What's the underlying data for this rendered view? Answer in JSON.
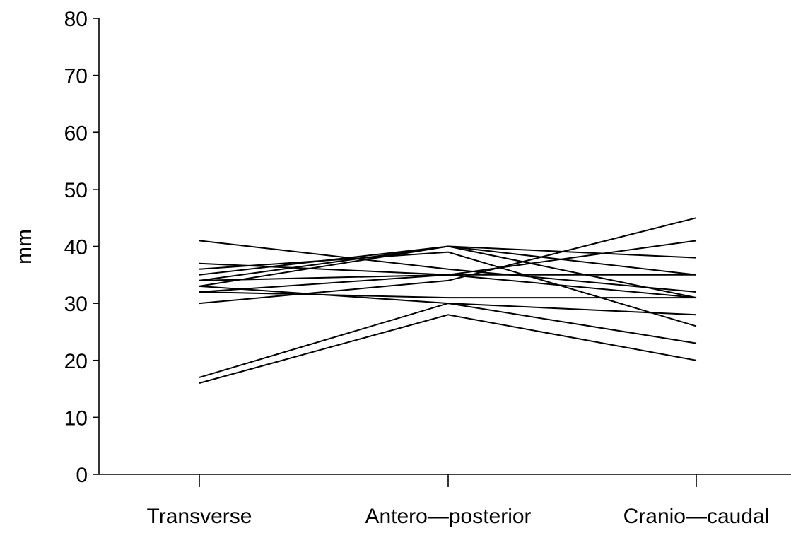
{
  "chart_data": {
    "type": "line",
    "title": "",
    "xlabel": "",
    "ylabel": "mm",
    "ylim": [
      0,
      80
    ],
    "yticks": [
      0,
      10,
      20,
      30,
      40,
      50,
      60,
      70,
      80
    ],
    "categories": [
      "Transverse",
      "Antero—posterior",
      "Cranio—caudal"
    ],
    "grid": false,
    "legend": "none",
    "line_color": "#000000",
    "series": [
      {
        "values": [
          41,
          36,
          32
        ]
      },
      {
        "values": [
          37,
          35,
          31
        ]
      },
      {
        "values": [
          36,
          39,
          26
        ]
      },
      {
        "values": [
          35,
          40,
          31
        ]
      },
      {
        "values": [
          34,
          40,
          35
        ]
      },
      {
        "values": [
          34,
          35,
          35
        ]
      },
      {
        "values": [
          33,
          30,
          28
        ]
      },
      {
        "values": [
          32,
          35,
          41
        ]
      },
      {
        "values": [
          32,
          31,
          31
        ]
      },
      {
        "values": [
          30,
          34,
          45
        ]
      },
      {
        "values": [
          33,
          40,
          38
        ]
      },
      {
        "values": [
          17,
          30,
          23
        ]
      },
      {
        "values": [
          16,
          28,
          20
        ]
      }
    ]
  }
}
